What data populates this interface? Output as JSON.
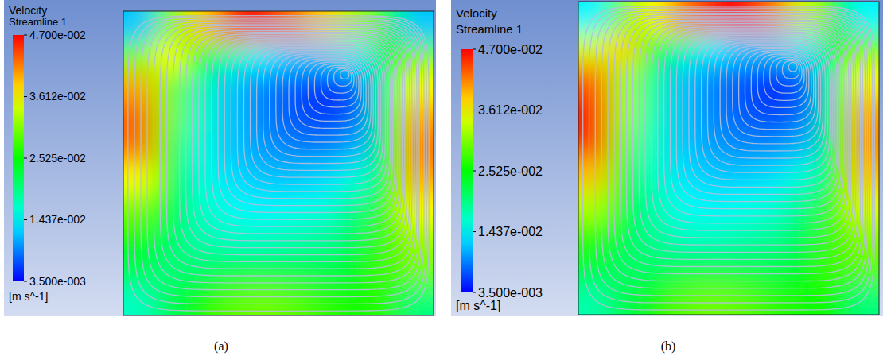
{
  "chart_data": [
    {
      "type": "heatmap",
      "title": "Velocity",
      "subtitle": "Streamline 1",
      "unit_label": "[m s^-1]",
      "caption": "(a)",
      "colorbar_range": [
        0.0035,
        0.047
      ],
      "colorbar_ticks": [
        {
          "value": 0.047,
          "label": "4.700e-002"
        },
        {
          "value": 0.03612,
          "label": "3.612e-002"
        },
        {
          "value": 0.02525,
          "label": "2.525e-002"
        },
        {
          "value": 0.01437,
          "label": "1.437e-002"
        },
        {
          "value": 0.0035,
          "label": "3.500e-003"
        }
      ],
      "cells": [
        [
          0.012,
          0.03,
          0.038,
          0.045,
          0.046,
          0.042,
          0.038,
          0.032,
          0.022,
          0.012
        ],
        [
          0.03,
          0.036,
          0.025,
          0.018,
          0.014,
          0.012,
          0.012,
          0.015,
          0.025,
          0.03
        ],
        [
          0.04,
          0.03,
          0.018,
          0.012,
          0.009,
          0.007,
          0.005,
          0.007,
          0.02,
          0.036
        ],
        [
          0.043,
          0.03,
          0.017,
          0.012,
          0.009,
          0.007,
          0.006,
          0.008,
          0.022,
          0.04
        ],
        [
          0.042,
          0.028,
          0.016,
          0.012,
          0.01,
          0.009,
          0.009,
          0.011,
          0.024,
          0.042
        ],
        [
          0.036,
          0.025,
          0.016,
          0.013,
          0.012,
          0.012,
          0.013,
          0.016,
          0.026,
          0.04
        ],
        [
          0.03,
          0.023,
          0.017,
          0.015,
          0.014,
          0.015,
          0.016,
          0.02,
          0.028,
          0.036
        ],
        [
          0.025,
          0.021,
          0.018,
          0.017,
          0.017,
          0.018,
          0.019,
          0.022,
          0.028,
          0.032
        ],
        [
          0.022,
          0.02,
          0.021,
          0.022,
          0.022,
          0.022,
          0.022,
          0.024,
          0.028,
          0.03
        ],
        [
          0.017,
          0.022,
          0.026,
          0.029,
          0.03,
          0.029,
          0.027,
          0.026,
          0.027,
          0.02
        ]
      ]
    },
    {
      "type": "heatmap",
      "title": "Velocity",
      "subtitle": "Streamline 1",
      "unit_label": "[m s^-1]",
      "caption": "(b)",
      "colorbar_range": [
        0.0035,
        0.047
      ],
      "colorbar_ticks": [
        {
          "value": 0.047,
          "label": "4.700e-002"
        },
        {
          "value": 0.03612,
          "label": "3.612e-002"
        },
        {
          "value": 0.02525,
          "label": "2.525e-002"
        },
        {
          "value": 0.01437,
          "label": "1.437e-002"
        },
        {
          "value": 0.0035,
          "label": "3.500e-003"
        }
      ],
      "cells": [
        [
          0.014,
          0.03,
          0.036,
          0.042,
          0.046,
          0.047,
          0.042,
          0.034,
          0.024,
          0.014
        ],
        [
          0.034,
          0.038,
          0.026,
          0.018,
          0.014,
          0.012,
          0.012,
          0.015,
          0.025,
          0.03
        ],
        [
          0.043,
          0.032,
          0.019,
          0.012,
          0.009,
          0.007,
          0.005,
          0.007,
          0.02,
          0.036
        ],
        [
          0.046,
          0.032,
          0.018,
          0.012,
          0.009,
          0.007,
          0.006,
          0.008,
          0.022,
          0.04
        ],
        [
          0.045,
          0.03,
          0.017,
          0.012,
          0.01,
          0.009,
          0.009,
          0.011,
          0.024,
          0.041
        ],
        [
          0.039,
          0.027,
          0.017,
          0.013,
          0.012,
          0.012,
          0.013,
          0.016,
          0.026,
          0.039
        ],
        [
          0.033,
          0.024,
          0.018,
          0.015,
          0.014,
          0.015,
          0.016,
          0.02,
          0.028,
          0.035
        ],
        [
          0.027,
          0.022,
          0.019,
          0.017,
          0.017,
          0.018,
          0.019,
          0.022,
          0.028,
          0.031
        ],
        [
          0.023,
          0.021,
          0.021,
          0.022,
          0.022,
          0.022,
          0.022,
          0.024,
          0.028,
          0.029
        ],
        [
          0.018,
          0.022,
          0.026,
          0.029,
          0.03,
          0.029,
          0.027,
          0.026,
          0.026,
          0.02
        ]
      ]
    }
  ]
}
